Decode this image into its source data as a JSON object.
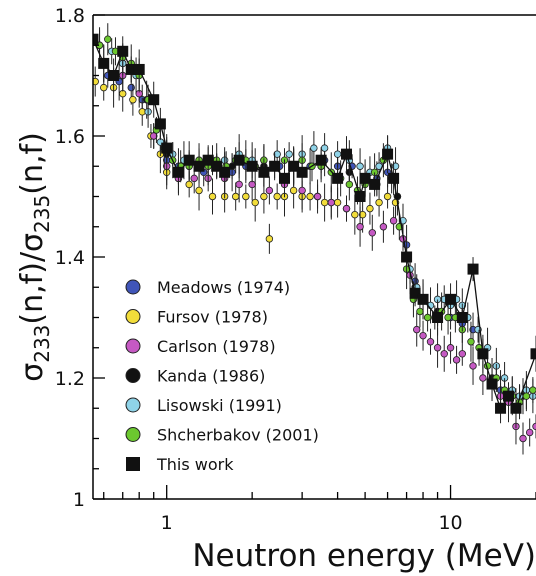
{
  "chart_data": {
    "type": "scatter",
    "title": "",
    "xlabel": "Neutron energy (MeV)",
    "ylabel_parts": [
      "σ",
      "233",
      "(n,f)/σ",
      "235",
      "(n,f)"
    ],
    "x_scale": "log",
    "xlim": [
      0.55,
      20
    ],
    "ylim": [
      1.0,
      1.8
    ],
    "x_ticks": [
      {
        "value": 1,
        "label": "1"
      },
      {
        "value": 10,
        "label": "10"
      }
    ],
    "y_ticks": [
      {
        "value": 1.0,
        "label": "1"
      },
      {
        "value": 1.2,
        "label": "1.2"
      },
      {
        "value": 1.4,
        "label": "1.4"
      },
      {
        "value": 1.6,
        "label": "1.6"
      },
      {
        "value": 1.8,
        "label": "1.8"
      }
    ],
    "grid": false,
    "legend_position": "bottom-left",
    "series": [
      {
        "name": "Meadows (1974)",
        "color": "#4055b8",
        "marker": "circle",
        "points": [
          [
            0.62,
            1.7
          ],
          [
            0.68,
            1.69
          ],
          [
            0.75,
            1.68
          ],
          [
            0.82,
            1.66
          ],
          [
            0.9,
            1.6
          ],
          [
            1.0,
            1.56
          ],
          [
            1.1,
            1.55
          ],
          [
            1.2,
            1.55
          ],
          [
            1.35,
            1.54
          ],
          [
            1.5,
            1.55
          ],
          [
            1.7,
            1.54
          ],
          [
            1.9,
            1.55
          ],
          [
            2.2,
            1.54
          ],
          [
            2.5,
            1.55
          ],
          [
            2.8,
            1.55
          ],
          [
            3.2,
            1.55
          ],
          [
            3.6,
            1.56
          ],
          [
            4.0,
            1.55
          ],
          [
            4.5,
            1.55
          ],
          [
            5.0,
            1.53
          ],
          [
            5.5,
            1.53
          ],
          [
            6.0,
            1.54
          ],
          [
            6.5,
            1.5
          ],
          [
            7.0,
            1.42
          ],
          [
            7.5,
            1.36
          ],
          [
            8.0,
            1.33
          ],
          [
            9.0,
            1.31
          ],
          [
            10.0,
            1.3
          ],
          [
            11.0,
            1.29
          ],
          [
            12.0,
            1.28
          ],
          [
            13.0,
            1.24
          ],
          [
            14.0,
            1.2
          ],
          [
            15.0,
            1.18
          ]
        ]
      },
      {
        "name": "Fursov (1978)",
        "color": "#f2dd3a",
        "marker": "circle",
        "points": [
          [
            0.56,
            1.69
          ],
          [
            0.6,
            1.68
          ],
          [
            0.65,
            1.68
          ],
          [
            0.7,
            1.67
          ],
          [
            0.76,
            1.66
          ],
          [
            0.82,
            1.64
          ],
          [
            0.88,
            1.6
          ],
          [
            0.95,
            1.57
          ],
          [
            1.0,
            1.54
          ],
          [
            1.1,
            1.53
          ],
          [
            1.2,
            1.52
          ],
          [
            1.3,
            1.51
          ],
          [
            1.45,
            1.5
          ],
          [
            1.6,
            1.5
          ],
          [
            1.75,
            1.5
          ],
          [
            1.9,
            1.5
          ],
          [
            2.05,
            1.49
          ],
          [
            2.2,
            1.5
          ],
          [
            2.3,
            1.43
          ],
          [
            2.45,
            1.5
          ],
          [
            2.6,
            1.5
          ],
          [
            2.8,
            1.51
          ],
          [
            3.0,
            1.5
          ],
          [
            3.2,
            1.5
          ],
          [
            3.4,
            1.5
          ],
          [
            3.6,
            1.49
          ],
          [
            3.8,
            1.49
          ],
          [
            4.0,
            1.49
          ],
          [
            4.3,
            1.48
          ],
          [
            4.6,
            1.47
          ],
          [
            4.9,
            1.47
          ],
          [
            5.2,
            1.48
          ],
          [
            5.6,
            1.49
          ],
          [
            6.0,
            1.5
          ],
          [
            6.4,
            1.49
          ]
        ]
      },
      {
        "name": "Carlson (1978)",
        "color": "#c559c3",
        "marker": "circle",
        "points": [
          [
            0.6,
            1.72
          ],
          [
            0.7,
            1.7
          ],
          [
            0.8,
            1.67
          ],
          [
            0.9,
            1.6
          ],
          [
            1.0,
            1.55
          ],
          [
            1.1,
            1.53
          ],
          [
            1.25,
            1.53
          ],
          [
            1.4,
            1.53
          ],
          [
            1.6,
            1.53
          ],
          [
            1.8,
            1.52
          ],
          [
            2.0,
            1.52
          ],
          [
            2.3,
            1.51
          ],
          [
            2.6,
            1.52
          ],
          [
            3.0,
            1.51
          ],
          [
            3.4,
            1.5
          ],
          [
            3.8,
            1.49
          ],
          [
            4.3,
            1.48
          ],
          [
            4.8,
            1.45
          ],
          [
            5.3,
            1.44
          ],
          [
            5.8,
            1.45
          ],
          [
            6.3,
            1.46
          ],
          [
            6.8,
            1.43
          ],
          [
            7.2,
            1.37
          ],
          [
            7.6,
            1.28
          ],
          [
            8.0,
            1.27
          ],
          [
            8.5,
            1.26
          ],
          [
            9.0,
            1.25
          ],
          [
            9.5,
            1.24
          ],
          [
            10.0,
            1.25
          ],
          [
            10.5,
            1.23
          ],
          [
            11.0,
            1.24
          ],
          [
            12.0,
            1.22
          ],
          [
            13.0,
            1.2
          ],
          [
            14.0,
            1.19
          ],
          [
            15.0,
            1.17
          ],
          [
            16.0,
            1.16
          ],
          [
            17.0,
            1.12
          ],
          [
            18.0,
            1.1
          ],
          [
            19.0,
            1.11
          ],
          [
            20.0,
            1.12
          ]
        ]
      },
      {
        "name": "Kanda (1986)",
        "color": "#111111",
        "marker": "circle",
        "points": [
          [
            0.7,
            1.72
          ],
          [
            0.85,
            1.66
          ],
          [
            1.0,
            1.57
          ],
          [
            1.3,
            1.55
          ],
          [
            1.7,
            1.55
          ],
          [
            2.2,
            1.55
          ],
          [
            2.8,
            1.55
          ],
          [
            3.5,
            1.55
          ],
          [
            4.4,
            1.54
          ],
          [
            5.5,
            1.52
          ],
          [
            6.5,
            1.5
          ],
          [
            7.5,
            1.35
          ],
          [
            9.0,
            1.31
          ],
          [
            11.0,
            1.3
          ],
          [
            14.0,
            1.2
          ],
          [
            18.0,
            1.17
          ]
        ]
      },
      {
        "name": "Lisowski (1991)",
        "color": "#8fd3e8",
        "marker": "circle",
        "points": [
          [
            0.58,
            1.75
          ],
          [
            0.64,
            1.74
          ],
          [
            0.7,
            1.72
          ],
          [
            0.78,
            1.7
          ],
          [
            0.86,
            1.64
          ],
          [
            0.95,
            1.59
          ],
          [
            1.05,
            1.57
          ],
          [
            1.15,
            1.56
          ],
          [
            1.3,
            1.56
          ],
          [
            1.45,
            1.56
          ],
          [
            1.6,
            1.56
          ],
          [
            1.8,
            1.57
          ],
          [
            2.0,
            1.56
          ],
          [
            2.2,
            1.56
          ],
          [
            2.45,
            1.57
          ],
          [
            2.7,
            1.57
          ],
          [
            3.0,
            1.57
          ],
          [
            3.3,
            1.58
          ],
          [
            3.6,
            1.58
          ],
          [
            4.0,
            1.57
          ],
          [
            4.4,
            1.56
          ],
          [
            4.8,
            1.55
          ],
          [
            5.2,
            1.54
          ],
          [
            5.6,
            1.55
          ],
          [
            6.0,
            1.58
          ],
          [
            6.4,
            1.55
          ],
          [
            6.8,
            1.46
          ],
          [
            7.2,
            1.38
          ],
          [
            7.6,
            1.35
          ],
          [
            8.0,
            1.33
          ],
          [
            8.5,
            1.32
          ],
          [
            9.0,
            1.33
          ],
          [
            9.5,
            1.33
          ],
          [
            10.0,
            1.32
          ],
          [
            10.5,
            1.33
          ],
          [
            11.0,
            1.32
          ],
          [
            11.5,
            1.3
          ],
          [
            12.5,
            1.28
          ],
          [
            13.5,
            1.25
          ],
          [
            14.5,
            1.22
          ],
          [
            15.5,
            1.2
          ],
          [
            16.5,
            1.18
          ],
          [
            17.5,
            1.17
          ],
          [
            18.5,
            1.18
          ],
          [
            19.5,
            1.17
          ]
        ]
      },
      {
        "name": "Shcherbakov (2001)",
        "color": "#6cc82f",
        "marker": "circle",
        "points": [
          [
            0.58,
            1.75
          ],
          [
            0.62,
            1.76
          ],
          [
            0.66,
            1.74
          ],
          [
            0.7,
            1.73
          ],
          [
            0.75,
            1.72
          ],
          [
            0.8,
            1.7
          ],
          [
            0.86,
            1.66
          ],
          [
            0.92,
            1.61
          ],
          [
            0.98,
            1.58
          ],
          [
            1.05,
            1.56
          ],
          [
            1.12,
            1.55
          ],
          [
            1.2,
            1.55
          ],
          [
            1.3,
            1.56
          ],
          [
            1.4,
            1.55
          ],
          [
            1.5,
            1.56
          ],
          [
            1.62,
            1.55
          ],
          [
            1.75,
            1.56
          ],
          [
            1.9,
            1.56
          ],
          [
            2.05,
            1.55
          ],
          [
            2.2,
            1.56
          ],
          [
            2.4,
            1.55
          ],
          [
            2.6,
            1.56
          ],
          [
            2.8,
            1.55
          ],
          [
            3.0,
            1.56
          ],
          [
            3.25,
            1.55
          ],
          [
            3.5,
            1.55
          ],
          [
            3.8,
            1.54
          ],
          [
            4.1,
            1.53
          ],
          [
            4.4,
            1.52
          ],
          [
            4.7,
            1.51
          ],
          [
            5.0,
            1.52
          ],
          [
            5.4,
            1.54
          ],
          [
            5.8,
            1.56
          ],
          [
            6.2,
            1.53
          ],
          [
            6.6,
            1.45
          ],
          [
            7.0,
            1.38
          ],
          [
            7.4,
            1.33
          ],
          [
            7.8,
            1.31
          ],
          [
            8.3,
            1.3
          ],
          [
            8.8,
            1.3
          ],
          [
            9.3,
            1.31
          ],
          [
            9.8,
            1.3
          ],
          [
            10.4,
            1.3
          ],
          [
            11.0,
            1.28
          ],
          [
            11.8,
            1.26
          ],
          [
            12.6,
            1.25
          ],
          [
            13.5,
            1.22
          ],
          [
            14.5,
            1.2
          ],
          [
            15.5,
            1.18
          ],
          [
            16.5,
            1.17
          ],
          [
            17.5,
            1.16
          ],
          [
            18.5,
            1.17
          ],
          [
            19.5,
            1.18
          ]
        ]
      },
      {
        "name": "This work",
        "color": "#111111",
        "marker": "square",
        "connect": true,
        "points": [
          [
            0.55,
            1.76
          ],
          [
            0.6,
            1.72
          ],
          [
            0.65,
            1.7
          ],
          [
            0.7,
            1.74
          ],
          [
            0.75,
            1.71
          ],
          [
            0.8,
            1.71
          ],
          [
            0.9,
            1.66
          ],
          [
            0.95,
            1.62
          ],
          [
            1.0,
            1.58
          ],
          [
            1.1,
            1.54
          ],
          [
            1.2,
            1.56
          ],
          [
            1.3,
            1.55
          ],
          [
            1.4,
            1.56
          ],
          [
            1.5,
            1.55
          ],
          [
            1.6,
            1.54
          ],
          [
            1.8,
            1.56
          ],
          [
            2.0,
            1.55
          ],
          [
            2.2,
            1.54
          ],
          [
            2.4,
            1.55
          ],
          [
            2.6,
            1.53
          ],
          [
            2.8,
            1.55
          ],
          [
            3.0,
            1.54
          ],
          [
            3.5,
            1.56
          ],
          [
            4.0,
            1.53
          ],
          [
            4.3,
            1.57
          ],
          [
            4.8,
            1.5
          ],
          [
            5.0,
            1.53
          ],
          [
            5.4,
            1.52
          ],
          [
            6.0,
            1.57
          ],
          [
            6.3,
            1.53
          ],
          [
            7.0,
            1.4
          ],
          [
            7.5,
            1.34
          ],
          [
            8.0,
            1.33
          ],
          [
            9.0,
            1.3
          ],
          [
            10.0,
            1.33
          ],
          [
            11.0,
            1.3
          ],
          [
            12.0,
            1.38
          ],
          [
            13.0,
            1.24
          ],
          [
            14.0,
            1.19
          ],
          [
            15.0,
            1.15
          ],
          [
            16.0,
            1.17
          ],
          [
            17.0,
            1.15
          ],
          [
            20.0,
            1.24
          ]
        ]
      }
    ]
  }
}
